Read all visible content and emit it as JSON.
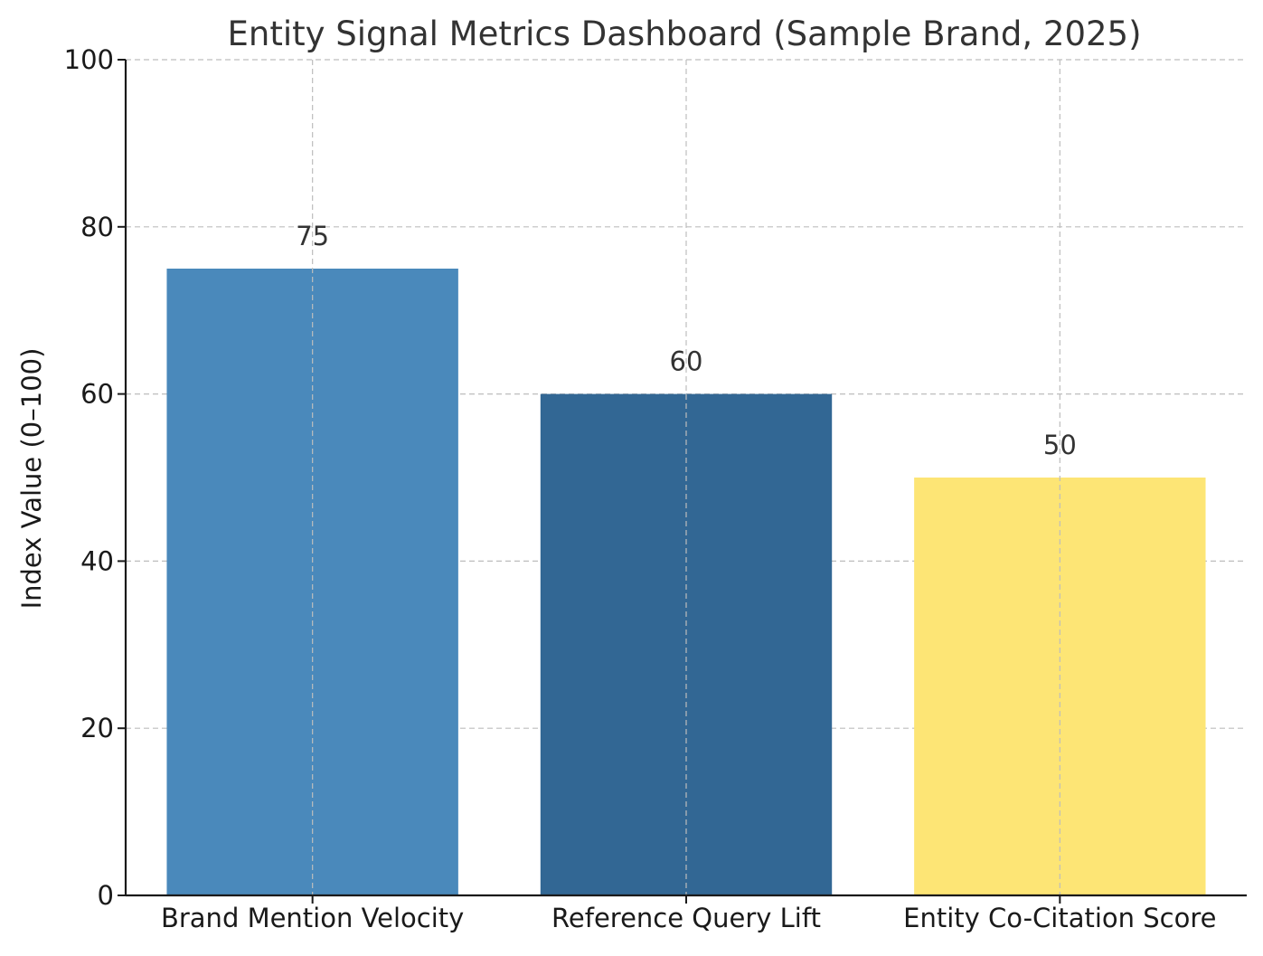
{
  "chart_data": {
    "type": "bar",
    "title": "Entity Signal Metrics Dashboard (Sample Brand, 2025)",
    "xlabel": "",
    "ylabel": "Index Value (0–100)",
    "categories": [
      "Brand Mention Velocity",
      "Reference Query Lift",
      "Entity Co-Citation Score"
    ],
    "values": [
      75,
      60,
      50
    ],
    "value_labels": [
      "75",
      "60",
      "50"
    ],
    "colors": [
      "#4a89bb",
      "#326794",
      "#fde575"
    ],
    "ylim": [
      0,
      100
    ],
    "yticks": [
      0,
      20,
      40,
      60,
      80,
      100
    ],
    "grid": true,
    "legend": false
  }
}
